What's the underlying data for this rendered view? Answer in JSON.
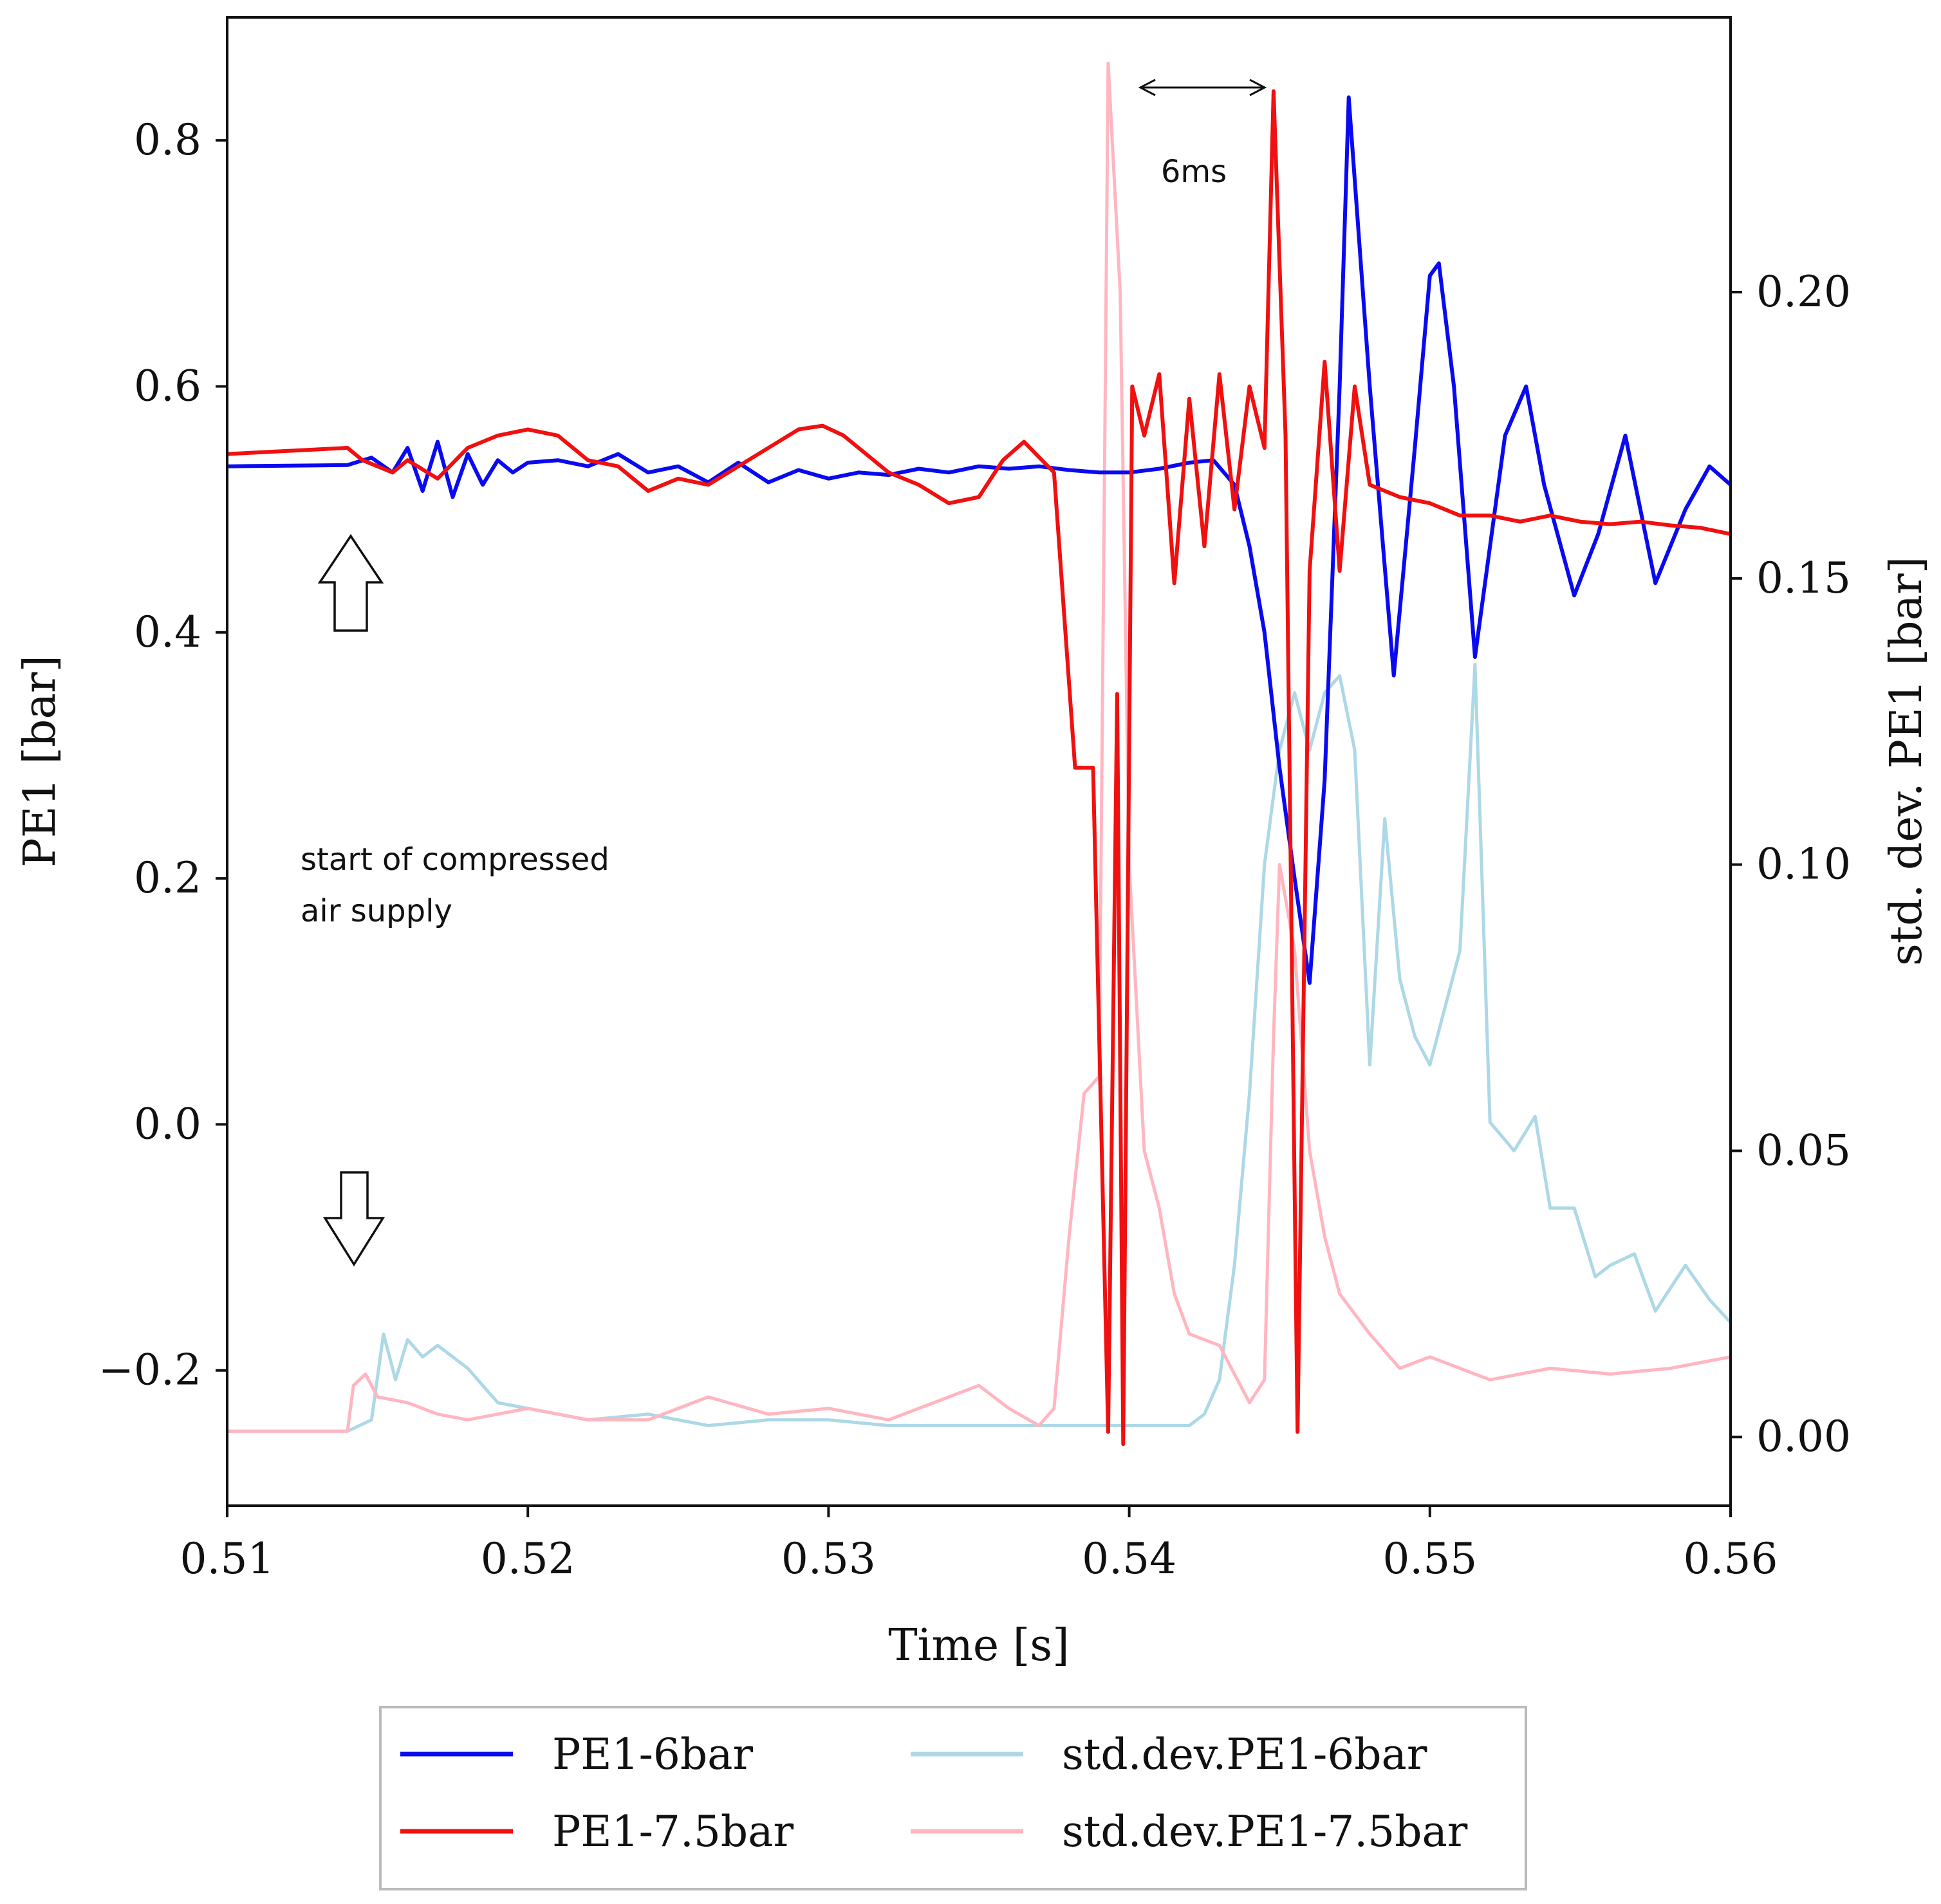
{
  "chart_data": {
    "type": "line",
    "title": "",
    "xlabel": "Time [s]",
    "ylabel_left": "PE1 [bar]",
    "ylabel_right": "std. dev. PE1 [bar]",
    "xlim": [
      0.51,
      0.56
    ],
    "ylim_left": [
      -0.31,
      0.9
    ],
    "ylim_right": [
      -0.012,
      0.248
    ],
    "x_ticks": [
      0.51,
      0.52,
      0.53,
      0.54,
      0.55,
      0.56
    ],
    "x_tick_labels": [
      "0.51",
      "0.52",
      "0.53",
      "0.54",
      "0.55",
      "0.56"
    ],
    "y_left_ticks": [
      -0.2,
      0.0,
      0.2,
      0.4,
      0.6,
      0.8
    ],
    "y_left_tick_labels": [
      "−0.2",
      "0.0",
      "0.2",
      "0.4",
      "0.6",
      "0.8"
    ],
    "y_right_ticks": [
      0.0,
      0.05,
      0.1,
      0.15,
      0.2
    ],
    "y_right_tick_labels": [
      "0.00",
      "0.05",
      "0.10",
      "0.15",
      "0.20"
    ],
    "grid": false,
    "legend_position": "bottom-center, below axes",
    "series": [
      {
        "name": "PE1-6bar",
        "axis": "left",
        "color": "#0a0af0",
        "x": [
          0.51,
          0.514,
          0.5148,
          0.5155,
          0.516,
          0.5165,
          0.517,
          0.5175,
          0.518,
          0.5185,
          0.519,
          0.5195,
          0.52,
          0.521,
          0.522,
          0.523,
          0.524,
          0.525,
          0.526,
          0.527,
          0.528,
          0.529,
          0.53,
          0.531,
          0.532,
          0.533,
          0.534,
          0.535,
          0.536,
          0.537,
          0.538,
          0.539,
          0.54,
          0.541,
          0.542,
          0.5428,
          0.5435,
          0.544,
          0.5445,
          0.545,
          0.5455,
          0.546,
          0.5465,
          0.547,
          0.5473,
          0.548,
          0.5488,
          0.5495,
          0.55,
          0.5503,
          0.5508,
          0.5515,
          0.5525,
          0.5532,
          0.5538,
          0.5548,
          0.5556,
          0.5565,
          0.5575,
          0.5585,
          0.5593,
          0.56
        ],
        "values": [
          0.535,
          0.536,
          0.542,
          0.53,
          0.55,
          0.515,
          0.555,
          0.51,
          0.545,
          0.52,
          0.54,
          0.53,
          0.538,
          0.54,
          0.535,
          0.545,
          0.53,
          0.535,
          0.522,
          0.538,
          0.522,
          0.532,
          0.525,
          0.53,
          0.528,
          0.533,
          0.53,
          0.535,
          0.533,
          0.535,
          0.532,
          0.53,
          0.53,
          0.533,
          0.538,
          0.54,
          0.52,
          0.47,
          0.4,
          0.29,
          0.2,
          0.115,
          0.28,
          0.6,
          0.835,
          0.6,
          0.365,
          0.55,
          0.69,
          0.7,
          0.6,
          0.38,
          0.56,
          0.6,
          0.52,
          0.43,
          0.48,
          0.56,
          0.44,
          0.5,
          0.535,
          0.52
        ]
      },
      {
        "name": "PE1-7.5bar",
        "axis": "left",
        "color": "#f01010",
        "x": [
          0.51,
          0.514,
          0.5145,
          0.515,
          0.5155,
          0.516,
          0.517,
          0.518,
          0.519,
          0.52,
          0.521,
          0.522,
          0.523,
          0.524,
          0.525,
          0.526,
          0.527,
          0.528,
          0.529,
          0.5298,
          0.5305,
          0.532,
          0.533,
          0.534,
          0.535,
          0.5358,
          0.5365,
          0.5375,
          0.5382,
          0.5388,
          0.5393,
          0.5396,
          0.5398,
          0.5401,
          0.5405,
          0.541,
          0.5415,
          0.542,
          0.5425,
          0.543,
          0.5435,
          0.544,
          0.5445,
          0.5448,
          0.5452,
          0.5456,
          0.546,
          0.5465,
          0.547,
          0.5475,
          0.548,
          0.549,
          0.55,
          0.551,
          0.552,
          0.553,
          0.554,
          0.555,
          0.556,
          0.557,
          0.558,
          0.559,
          0.56
        ],
        "values": [
          0.545,
          0.55,
          0.54,
          0.535,
          0.53,
          0.54,
          0.525,
          0.55,
          0.56,
          0.565,
          0.56,
          0.54,
          0.535,
          0.515,
          0.525,
          0.52,
          0.535,
          0.55,
          0.565,
          0.568,
          0.56,
          0.53,
          0.52,
          0.505,
          0.51,
          0.54,
          0.555,
          0.53,
          0.29,
          0.29,
          -0.25,
          0.35,
          -0.26,
          0.6,
          0.56,
          0.61,
          0.44,
          0.59,
          0.47,
          0.61,
          0.5,
          0.6,
          0.55,
          0.84,
          0.56,
          -0.25,
          0.45,
          0.62,
          0.45,
          0.6,
          0.52,
          0.51,
          0.505,
          0.495,
          0.495,
          0.49,
          0.495,
          0.49,
          0.488,
          0.49,
          0.487,
          0.485,
          0.48
        ]
      },
      {
        "name": "std.dev.PE1-6bar",
        "axis": "right",
        "color": "#add8e6",
        "x": [
          0.51,
          0.514,
          0.5148,
          0.5152,
          0.5156,
          0.516,
          0.5165,
          0.517,
          0.518,
          0.519,
          0.52,
          0.522,
          0.524,
          0.526,
          0.528,
          0.53,
          0.532,
          0.534,
          0.536,
          0.538,
          0.54,
          0.541,
          0.542,
          0.5425,
          0.543,
          0.5435,
          0.544,
          0.5445,
          0.545,
          0.5455,
          0.546,
          0.5465,
          0.547,
          0.5475,
          0.548,
          0.5485,
          0.549,
          0.5495,
          0.55,
          0.5505,
          0.551,
          0.5515,
          0.552,
          0.5528,
          0.5535,
          0.554,
          0.5548,
          0.5555,
          0.556,
          0.5568,
          0.5575,
          0.5585,
          0.5593,
          0.56
        ],
        "values": [
          0.001,
          0.001,
          0.003,
          0.018,
          0.01,
          0.017,
          0.014,
          0.016,
          0.012,
          0.006,
          0.005,
          0.003,
          0.004,
          0.002,
          0.003,
          0.003,
          0.002,
          0.002,
          0.002,
          0.002,
          0.002,
          0.002,
          0.002,
          0.004,
          0.01,
          0.03,
          0.06,
          0.1,
          0.12,
          0.13,
          0.12,
          0.13,
          0.133,
          0.12,
          0.065,
          0.108,
          0.08,
          0.07,
          0.065,
          0.075,
          0.085,
          0.135,
          0.055,
          0.05,
          0.056,
          0.04,
          0.04,
          0.028,
          0.03,
          0.032,
          0.022,
          0.03,
          0.024,
          0.02
        ]
      },
      {
        "name": "std.dev.PE1-7.5bar",
        "axis": "right",
        "color": "#ffb6c1",
        "x": [
          0.51,
          0.514,
          0.5142,
          0.5146,
          0.515,
          0.516,
          0.517,
          0.518,
          0.519,
          0.52,
          0.522,
          0.524,
          0.526,
          0.528,
          0.53,
          0.532,
          0.534,
          0.535,
          0.536,
          0.537,
          0.5375,
          0.538,
          0.5385,
          0.539,
          0.5393,
          0.5397,
          0.54,
          0.5405,
          0.541,
          0.5415,
          0.542,
          0.543,
          0.544,
          0.5445,
          0.5448,
          0.545,
          0.5455,
          0.546,
          0.5465,
          0.547,
          0.548,
          0.549,
          0.55,
          0.552,
          0.554,
          0.556,
          0.558,
          0.56
        ],
        "values": [
          0.001,
          0.001,
          0.009,
          0.011,
          0.007,
          0.006,
          0.004,
          0.003,
          0.004,
          0.005,
          0.003,
          0.003,
          0.007,
          0.004,
          0.005,
          0.003,
          0.007,
          0.009,
          0.005,
          0.002,
          0.005,
          0.035,
          0.06,
          0.063,
          0.24,
          0.2,
          0.1,
          0.05,
          0.04,
          0.025,
          0.018,
          0.016,
          0.006,
          0.01,
          0.07,
          0.1,
          0.085,
          0.05,
          0.035,
          0.025,
          0.018,
          0.012,
          0.014,
          0.01,
          0.012,
          0.011,
          0.012,
          0.014
        ]
      }
    ],
    "annotations": {
      "interval_label": "6ms",
      "start_label_line1": "start of compressed",
      "start_label_line2": "air supply"
    },
    "legend_entries": [
      "PE1-6bar",
      "PE1-7.5bar",
      "std.dev.PE1-6bar",
      "std.dev.PE1-7.5bar"
    ]
  }
}
